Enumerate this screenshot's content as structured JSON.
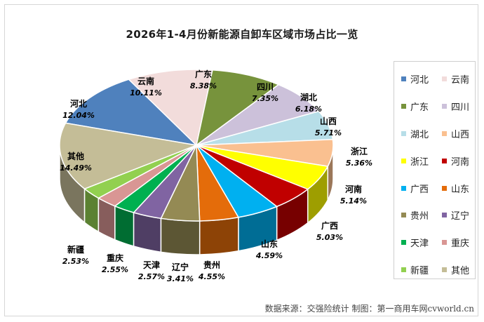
{
  "chart_data": {
    "type": "pie",
    "title": "2026年1-4月份新能源自卸车区域市场占比一览",
    "slices": [
      {
        "label": "河北",
        "value": 12.04,
        "value_label": "12.04%",
        "color": "#4f81bd"
      },
      {
        "label": "云南",
        "value": 10.11,
        "value_label": "10.11%",
        "color": "#f2dcdb"
      },
      {
        "label": "广东",
        "value": 8.38,
        "value_label": "8.38%",
        "color": "#77933c"
      },
      {
        "label": "四川",
        "value": 7.35,
        "value_label": "7.35%",
        "color": "#ccc1da"
      },
      {
        "label": "湖北",
        "value": 6.18,
        "value_label": "6.18%",
        "color": "#b7dee8"
      },
      {
        "label": "山西",
        "value": 5.71,
        "value_label": "5.71%",
        "color": "#fac090"
      },
      {
        "label": "浙江",
        "value": 5.36,
        "value_label": "5.36%",
        "color": "#ffff00"
      },
      {
        "label": "河南",
        "value": 5.14,
        "value_label": "5.14%",
        "color": "#c00000"
      },
      {
        "label": "广西",
        "value": 5.03,
        "value_label": "5.03%",
        "color": "#00b0f0"
      },
      {
        "label": "山东",
        "value": 4.59,
        "value_label": "4.59%",
        "color": "#e46c0a"
      },
      {
        "label": "贵州",
        "value": 4.55,
        "value_label": "4.55%",
        "color": "#948a54"
      },
      {
        "label": "辽宁",
        "value": 3.41,
        "value_label": "3.41%",
        "color": "#8064a2"
      },
      {
        "label": "天津",
        "value": 2.57,
        "value_label": "2.57%",
        "color": "#00b050"
      },
      {
        "label": "重庆",
        "value": 2.55,
        "value_label": "2.55%",
        "color": "#d99694"
      },
      {
        "label": "新疆",
        "value": 2.53,
        "value_label": "2.53%",
        "color": "#92d050"
      },
      {
        "label": "其他",
        "value": 14.49,
        "value_label": "14.49%",
        "color": "#c4bd97"
      }
    ],
    "legend_position": "right"
  },
  "footer": {
    "source": "数据来源：交强险统计  制图：第一商用车网cvworld.cn"
  }
}
